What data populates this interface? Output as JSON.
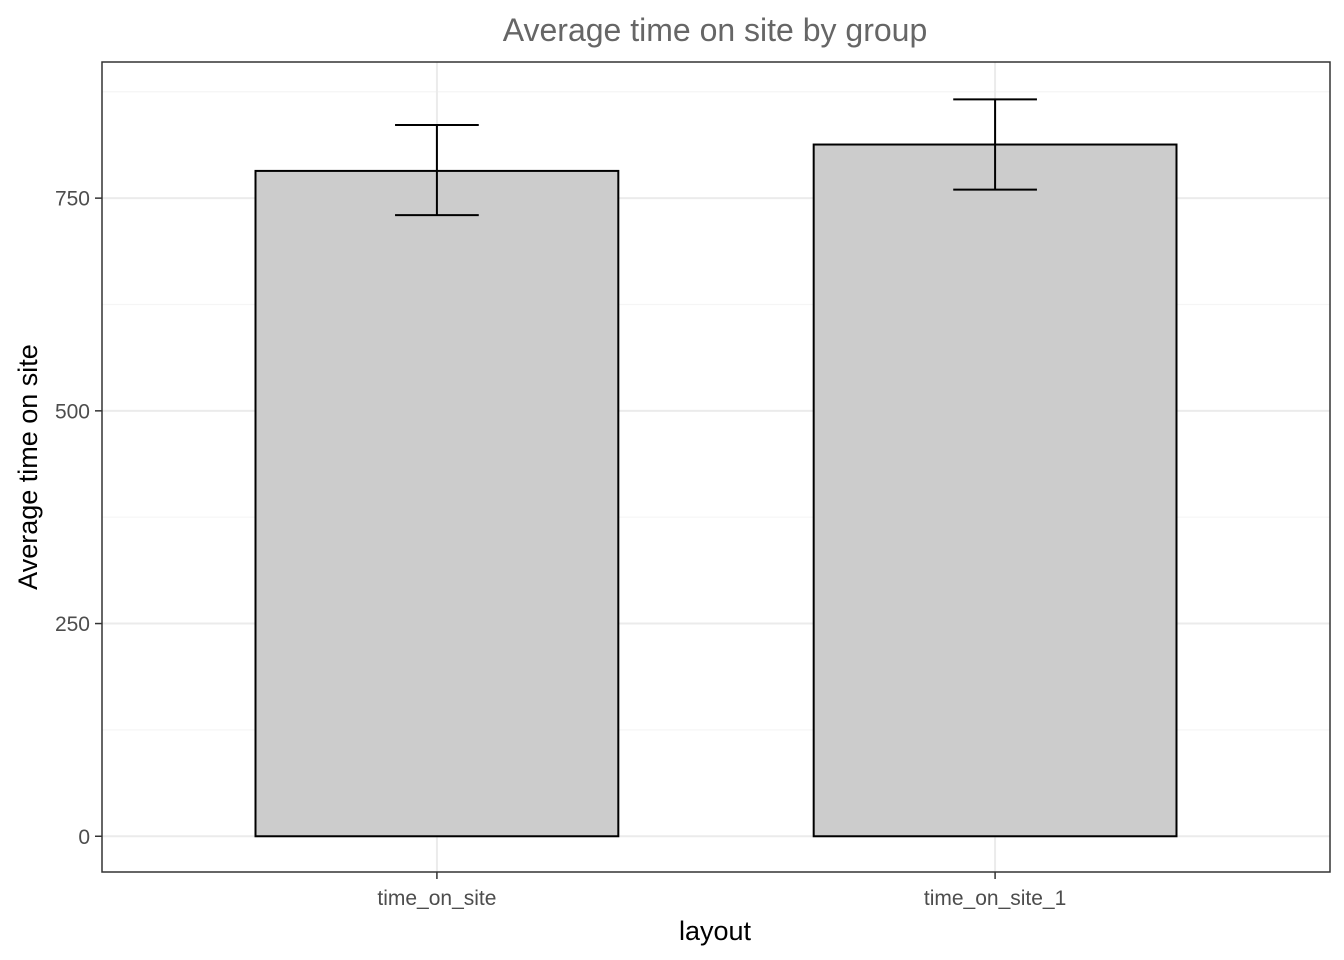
{
  "chart_data": {
    "type": "bar",
    "title": "Average time on site by group",
    "xlabel": "layout",
    "ylabel": "Average time on site",
    "categories": [
      "time_on_site",
      "time_on_site_1"
    ],
    "values": [
      782,
      813
    ],
    "error_bars": [
      {
        "lower": 730,
        "upper": 836
      },
      {
        "lower": 760,
        "upper": 866
      }
    ],
    "ylim": [
      -42,
      910
    ],
    "yticks": [
      0,
      250,
      500,
      750
    ],
    "ytick_labels": [
      "0",
      "250",
      "500",
      "750"
    ],
    "grid": true,
    "legend": "none",
    "colors": {
      "bar_fill": "#cccccc",
      "bar_stroke": "#000000",
      "error_bar": "#000000",
      "major_grid": "#ebebeb",
      "minor_grid": "#f5f5f5",
      "panel_border": "#333333",
      "title": "#666666"
    }
  }
}
